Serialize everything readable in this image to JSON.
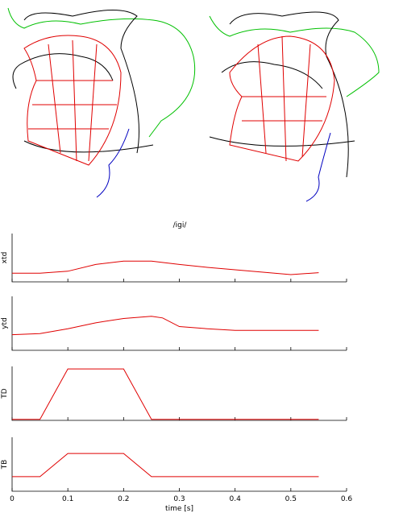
{
  "chart_data": [
    {
      "type": "line",
      "title": "/igi/",
      "ylabel": "xtd",
      "x": [
        0,
        0.05,
        0.1,
        0.15,
        0.2,
        0.25,
        0.3,
        0.35,
        0.4,
        0.45,
        0.5,
        0.55
      ],
      "series": [
        {
          "name": "xtd",
          "color": "#e00000",
          "values": [
            0.18,
            0.18,
            0.22,
            0.36,
            0.43,
            0.43,
            0.36,
            0.3,
            0.25,
            0.2,
            0.15,
            0.19
          ]
        }
      ],
      "xlim": [
        0,
        0.6
      ],
      "ylim": [
        0,
        1
      ],
      "xticks": [
        0,
        0.1,
        0.2,
        0.3,
        0.4,
        0.5,
        0.6
      ]
    },
    {
      "type": "line",
      "ylabel": "ytd",
      "x": [
        0,
        0.05,
        0.1,
        0.15,
        0.2,
        0.25,
        0.27,
        0.3,
        0.35,
        0.4,
        0.45,
        0.5,
        0.55
      ],
      "series": [
        {
          "name": "ytd",
          "color": "#e00000",
          "values": [
            0.29,
            0.31,
            0.4,
            0.51,
            0.59,
            0.63,
            0.6,
            0.44,
            0.4,
            0.37,
            0.37,
            0.37,
            0.37
          ]
        }
      ],
      "xlim": [
        0,
        0.6
      ],
      "ylim": [
        0,
        1
      ],
      "xticks": [
        0,
        0.1,
        0.2,
        0.3,
        0.4,
        0.5,
        0.6
      ]
    },
    {
      "type": "line",
      "ylabel": "TD",
      "x": [
        0,
        0.05,
        0.1,
        0.2,
        0.25,
        0.55
      ],
      "series": [
        {
          "name": "TD",
          "color": "#e00000",
          "values": [
            0,
            0,
            1,
            1,
            0,
            0
          ]
        }
      ],
      "xlim": [
        0,
        0.6
      ],
      "ylim": [
        -0.02,
        1.05
      ],
      "xticks": [
        0,
        0.1,
        0.2,
        0.3,
        0.4,
        0.5,
        0.6
      ]
    },
    {
      "type": "line",
      "ylabel": "TB",
      "xlabel": "time [s]",
      "x": [
        0,
        0.05,
        0.1,
        0.2,
        0.25,
        0.55
      ],
      "series": [
        {
          "name": "TB",
          "color": "#e00000",
          "values": [
            0.27,
            0.27,
            0.7,
            0.7,
            0.27,
            0.27
          ]
        }
      ],
      "xlim": [
        0,
        0.6
      ],
      "ylim": [
        0,
        1
      ],
      "xticks": [
        0,
        0.1,
        0.2,
        0.3,
        0.4,
        0.5,
        0.6
      ],
      "show_xtick_labels": true
    }
  ]
}
